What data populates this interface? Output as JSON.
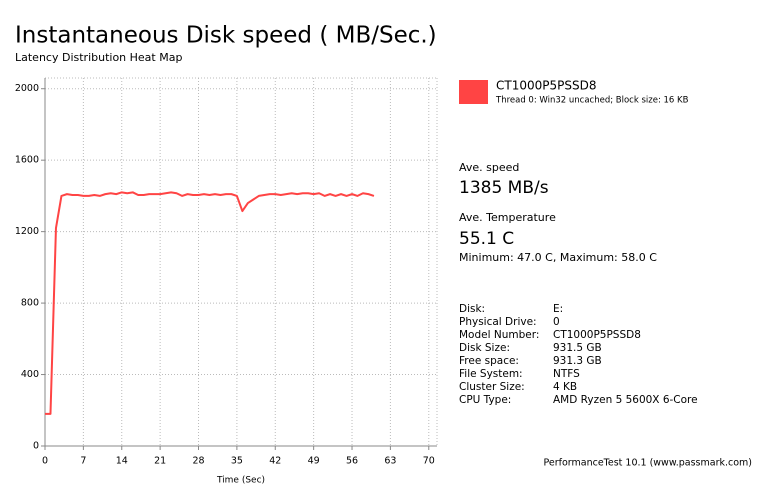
{
  "chart_data": {
    "type": "line",
    "title": "Instantaneous Disk speed ( MB/Sec.)",
    "subtitle": "Latency Distribution Heat Map",
    "x_label": "Time (Sec)",
    "x": [
      0,
      1,
      2,
      3,
      4,
      5,
      6,
      7,
      8,
      9,
      10,
      11,
      12,
      13,
      14,
      15,
      16,
      17,
      18,
      19,
      20,
      21,
      22,
      23,
      24,
      25,
      26,
      27,
      28,
      29,
      30,
      31,
      32,
      33,
      34,
      35,
      36,
      37,
      38,
      39,
      40,
      41,
      42,
      43,
      44,
      45,
      46,
      47,
      48,
      49,
      50,
      51,
      52,
      53,
      54,
      55,
      56,
      57,
      58,
      59,
      60
    ],
    "series": [
      {
        "name": "CT1000P5PSSD8",
        "color": "#ff4444",
        "values": [
          180,
          180,
          1220,
          1400,
          1410,
          1405,
          1405,
          1400,
          1400,
          1405,
          1400,
          1410,
          1415,
          1410,
          1420,
          1415,
          1420,
          1405,
          1405,
          1410,
          1410,
          1410,
          1415,
          1420,
          1415,
          1400,
          1410,
          1405,
          1405,
          1410,
          1405,
          1410,
          1405,
          1410,
          1410,
          1400,
          1315,
          1360,
          1380,
          1400,
          1405,
          1410,
          1410,
          1405,
          1410,
          1415,
          1410,
          1415,
          1415,
          1410,
          1415,
          1400,
          1410,
          1400,
          1410,
          1400,
          1410,
          1400,
          1415,
          1410,
          1400
        ]
      }
    ],
    "legend_detail": "Thread 0: Win32 uncached; Block size: 16 KB",
    "xlim": [
      0,
      71.5
    ],
    "xticks": [
      0,
      7,
      14,
      21,
      28,
      35,
      42,
      49,
      56,
      63,
      70
    ],
    "ylim": [
      0,
      2060
    ],
    "yticks": [
      0,
      400,
      800,
      1200,
      1600,
      2000
    ],
    "grid": true
  },
  "panel": {
    "speed_label": "Ave. speed",
    "speed_value": "1385 MB/s",
    "temp_label": "Ave. Temperature",
    "temp_value": "55.1 C",
    "temp_range": "Minimum: 47.0 C, Maximum: 58.0 C",
    "info": [
      [
        "Disk:",
        "E:"
      ],
      [
        "Physical Drive:",
        "0"
      ],
      [
        "Model Number:",
        "CT1000P5PSSD8"
      ],
      [
        "Disk Size:",
        "931.5 GB"
      ],
      [
        "Free space:",
        "931.3 GB"
      ],
      [
        "File System:",
        "NTFS"
      ],
      [
        "Cluster Size:",
        "4 KB"
      ],
      [
        "CPU Type:",
        "AMD Ryzen 5 5600X 6-Core"
      ]
    ],
    "footer": "PerformanceTest 10.1 (www.passmark.com)"
  }
}
